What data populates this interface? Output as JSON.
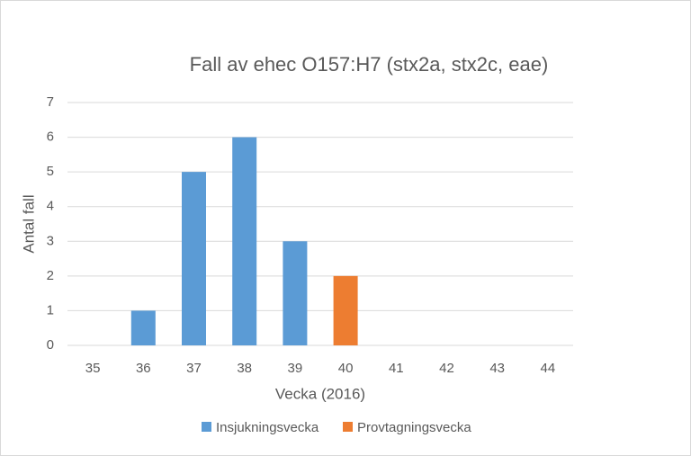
{
  "chart_data": {
    "type": "stacked-bar",
    "title": "Fall av ehec O157:H7 (stx2a, stx2c, eae)",
    "x_label": "Vecka (2016)",
    "y_label": "Antal fall",
    "categories": [
      "35",
      "36",
      "37",
      "38",
      "39",
      "40",
      "41",
      "42",
      "43",
      "44"
    ],
    "series": [
      {
        "name": "Insjukningsvecka",
        "color": "#5b9bd5",
        "values": [
          0,
          1,
          5,
          6,
          3,
          0,
          0,
          0,
          0,
          0
        ]
      },
      {
        "name": "Provtagningsvecka",
        "color": "#ed7d31",
        "values": [
          0,
          0,
          0,
          0,
          0,
          2,
          0,
          0,
          0,
          0
        ]
      }
    ],
    "ylim": [
      0,
      7
    ],
    "yticks": [
      0,
      1,
      2,
      3,
      4,
      5,
      6,
      7
    ],
    "grid": true,
    "legend": "bottom"
  }
}
